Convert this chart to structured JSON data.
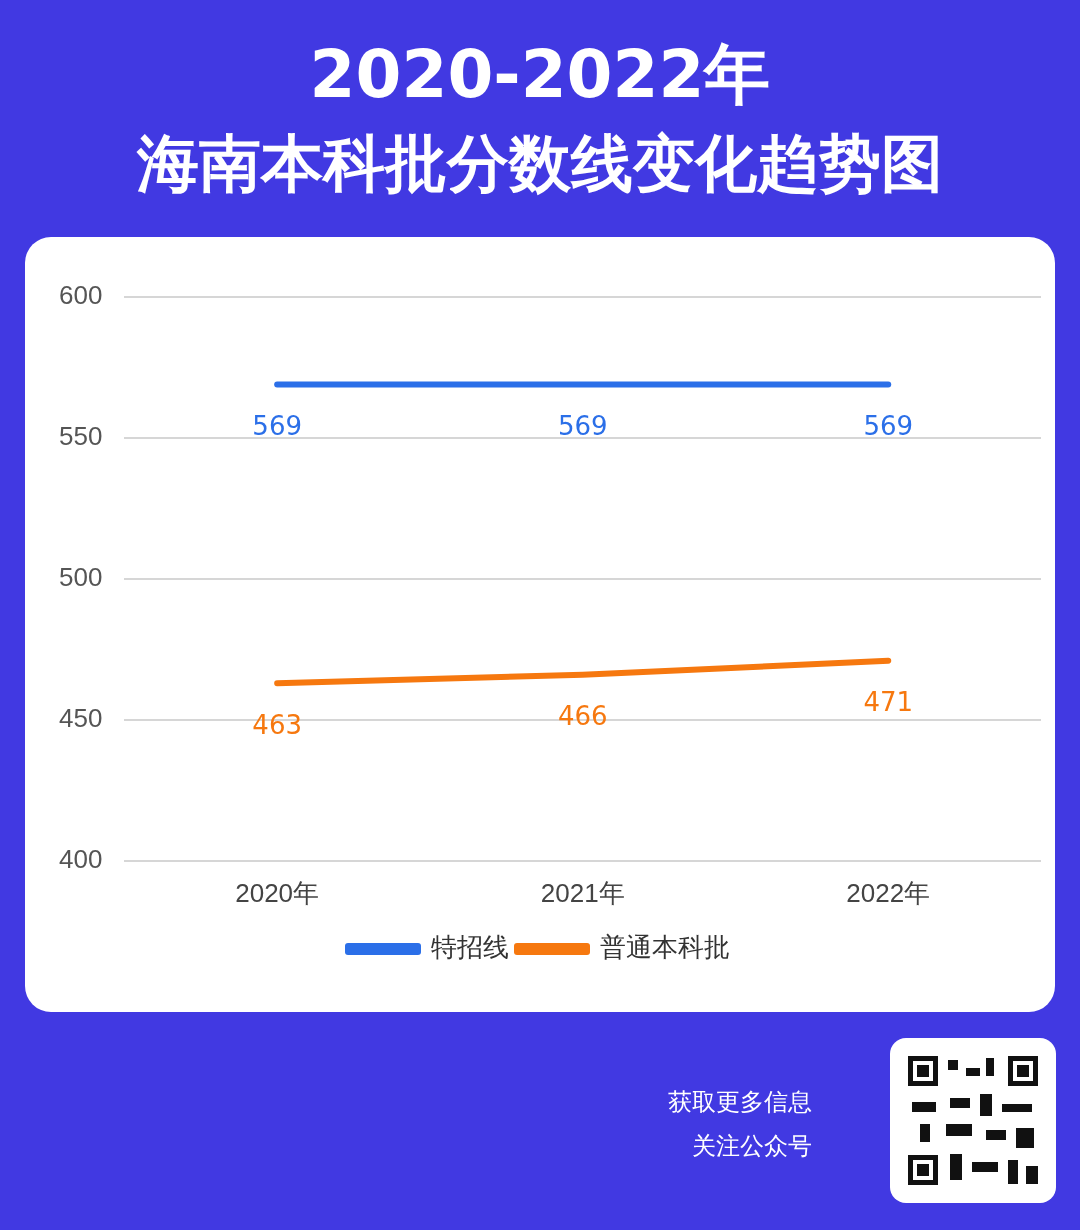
{
  "chart_data": {
    "type": "line",
    "title": "2020-2022年",
    "subtitle": "海南本科批分数线变化趋势图",
    "categories": [
      "2020年",
      "2021年",
      "2022年"
    ],
    "series": [
      {
        "name": "特招线",
        "color": "#2b6fe8",
        "values": [
          569,
          569,
          569
        ]
      },
      {
        "name": "普通本科批",
        "color": "#f6780f",
        "values": [
          463,
          466,
          471
        ]
      }
    ],
    "ylim": [
      400,
      600
    ],
    "yticks": [
      400,
      450,
      500,
      550,
      600
    ],
    "grid": "y",
    "legend": "bottom",
    "data_labels": true,
    "marker": "none",
    "line_style": "solid",
    "annotations": [
      "获取更多信息",
      "关注公众号"
    ]
  }
}
